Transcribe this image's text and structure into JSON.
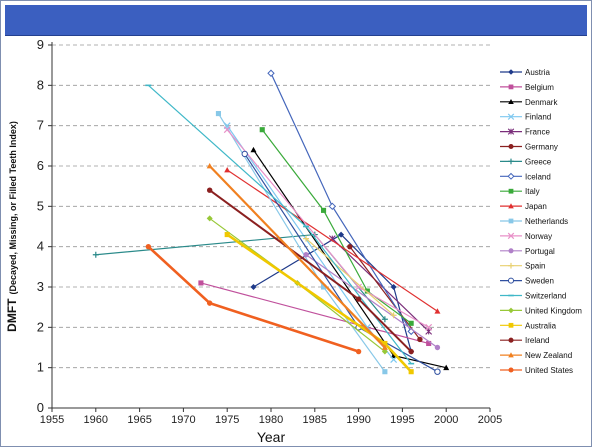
{
  "chart_data": {
    "type": "line",
    "title": "",
    "xlabel": "Year",
    "ylabel_main": "DMFT",
    "ylabel_sub": "(Decayed, Missing, or Filled Teeth Index)",
    "xlim": [
      1955,
      2005
    ],
    "ylim": [
      0,
      9
    ],
    "xticks": [
      1955,
      1960,
      1965,
      1970,
      1975,
      1980,
      1985,
      1990,
      1995,
      2000,
      2005
    ],
    "yticks": [
      0,
      1,
      2,
      3,
      4,
      5,
      6,
      7,
      8,
      9
    ],
    "grid": "horizontal",
    "legend_position": "right",
    "series": [
      {
        "name": "Austria",
        "color": "#1f3a8a",
        "marker": "diamond",
        "points": [
          [
            1978,
            3.0
          ],
          [
            1988,
            4.3
          ],
          [
            1994,
            3.0
          ],
          [
            1996,
            1.4
          ]
        ]
      },
      {
        "name": "Belgium",
        "color": "#c0509c",
        "marker": "square",
        "points": [
          [
            1972,
            3.1
          ],
          [
            1998,
            1.6
          ]
        ]
      },
      {
        "name": "Denmark",
        "color": "#000000",
        "marker": "triangle",
        "points": [
          [
            1978,
            6.4
          ],
          [
            1994,
            1.3
          ],
          [
            2000,
            1.0
          ]
        ]
      },
      {
        "name": "Finland",
        "color": "#7ec8f0",
        "marker": "x",
        "points": [
          [
            1975,
            7.0
          ],
          [
            1991,
            2.0
          ],
          [
            1994,
            1.2
          ]
        ]
      },
      {
        "name": "France",
        "color": "#7a2e7a",
        "marker": "star",
        "points": [
          [
            1987,
            4.2
          ],
          [
            1998,
            1.9
          ]
        ]
      },
      {
        "name": "Germany",
        "color": "#8b2020",
        "marker": "circle",
        "points": [
          [
            1989,
            4.0
          ],
          [
            1997,
            1.7
          ]
        ]
      },
      {
        "name": "Greece",
        "color": "#2a8a8a",
        "marker": "plus",
        "points": [
          [
            1960,
            3.8
          ],
          [
            1985,
            4.3
          ],
          [
            1993,
            2.2
          ]
        ]
      },
      {
        "name": "Iceland",
        "color": "#4466bb",
        "marker": "diamond-open",
        "points": [
          [
            1980,
            8.3
          ],
          [
            1987,
            5.0
          ],
          [
            1996,
            1.9
          ]
        ]
      },
      {
        "name": "Italy",
        "color": "#3aaa3a",
        "marker": "square",
        "points": [
          [
            1979,
            6.9
          ],
          [
            1986,
            4.9
          ],
          [
            1991,
            2.9
          ],
          [
            1996,
            2.1
          ]
        ]
      },
      {
        "name": "Japan",
        "color": "#e03030",
        "marker": "triangle",
        "points": [
          [
            1975,
            5.9
          ],
          [
            1999,
            2.4
          ]
        ]
      },
      {
        "name": "Netherlands",
        "color": "#88c8e8",
        "marker": "square",
        "points": [
          [
            1974,
            7.3
          ],
          [
            1986,
            3.0
          ],
          [
            1993,
            0.9
          ]
        ]
      },
      {
        "name": "Norway",
        "color": "#e890c8",
        "marker": "x",
        "points": [
          [
            1975,
            6.9
          ],
          [
            1990,
            3.0
          ],
          [
            1998,
            2.0
          ]
        ]
      },
      {
        "name": "Portugal",
        "color": "#b080c8",
        "marker": "circle",
        "points": [
          [
            1984,
            3.8
          ],
          [
            1999,
            1.5
          ]
        ]
      },
      {
        "name": "Spain",
        "color": "#e8d070",
        "marker": "plus",
        "points": [
          [
            1984,
            4.2
          ],
          [
            1994,
            2.3
          ]
        ]
      },
      {
        "name": "Sweden",
        "color": "#3050a0",
        "marker": "circle-open",
        "points": [
          [
            1977,
            6.3
          ],
          [
            1990,
            2.0
          ],
          [
            1999,
            0.9
          ]
        ]
      },
      {
        "name": "Switzerland",
        "color": "#40b8c8",
        "marker": "dash",
        "points": [
          [
            1966,
            8.0
          ],
          [
            1984,
            4.5
          ],
          [
            1996,
            1.1
          ]
        ]
      },
      {
        "name": "United Kingdom",
        "color": "#98c838",
        "marker": "diamond",
        "points": [
          [
            1973,
            4.7
          ],
          [
            1983,
            3.1
          ],
          [
            1993,
            1.4
          ]
        ]
      },
      {
        "name": "Australia",
        "color": "#f0c800",
        "marker": "square",
        "points": [
          [
            1975,
            4.3
          ],
          [
            1993,
            1.6
          ],
          [
            1996,
            0.9
          ]
        ]
      },
      {
        "name": "Ireland",
        "color": "#8b2020",
        "marker": "circle",
        "points": [
          [
            1973,
            5.4
          ],
          [
            1990,
            2.7
          ],
          [
            1996,
            1.4
          ]
        ]
      },
      {
        "name": "New Zealand",
        "color": "#f08020",
        "marker": "triangle",
        "points": [
          [
            1973,
            6.0
          ],
          [
            1993,
            1.5
          ]
        ]
      },
      {
        "name": "United States",
        "color": "#f06020",
        "marker": "circle",
        "points": [
          [
            1966,
            4.0
          ],
          [
            1973,
            2.6
          ],
          [
            1990,
            1.4
          ]
        ]
      }
    ]
  }
}
